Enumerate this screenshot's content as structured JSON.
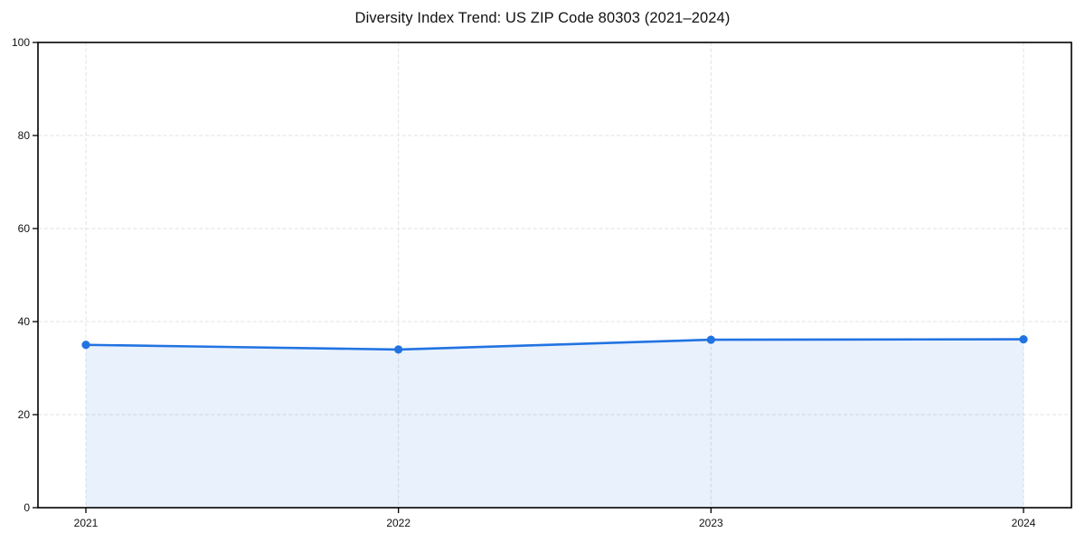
{
  "chart_data": {
    "type": "area",
    "title": "Diversity Index Trend: US ZIP Code 80303 (2021–2024)",
    "categories": [
      "2021",
      "2022",
      "2023",
      "2024"
    ],
    "series": [
      {
        "name": "Diversity Index",
        "values": [
          35.0,
          34.0,
          36.1,
          36.2
        ]
      }
    ],
    "xlabel": "",
    "ylabel": "",
    "ylim": [
      0,
      100
    ],
    "yticks": [
      0,
      20,
      40,
      60,
      80,
      100
    ],
    "grid": true,
    "grid_style": "dashed",
    "legend_position": "none",
    "colors": {
      "line": "#2273e2",
      "marker": "#2273e2",
      "fill": "rgba(34,115,226,0.10)",
      "grid": "#e1e1e1",
      "axis": "#000000",
      "background": "#ffffff",
      "text": "#111111"
    }
  }
}
